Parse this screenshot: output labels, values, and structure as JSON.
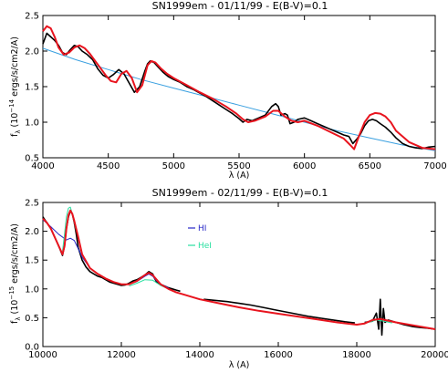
{
  "chart_data": [
    {
      "type": "line",
      "title": "SN1999em - 01/11/99 - E(B-V)=0.1",
      "xlabel": "λ (A)",
      "ylabel_sym": "f",
      "ylabel_sub": "λ",
      "ylabel_main": "(10",
      "ylabel_exp": "−14",
      "ylabel_units": "ergs/s/cm2/A)",
      "xlim": [
        4000,
        7000
      ],
      "ylim": [
        0.5,
        2.5
      ],
      "xticks": [
        "4000",
        "4500",
        "5000",
        "5500",
        "6000",
        "6500",
        "7000"
      ],
      "yticks": [
        "0.5",
        "1.0",
        "1.5",
        "2.0",
        "2.5"
      ],
      "grid": false,
      "series": [
        {
          "color": "#000000",
          "kind": "observed",
          "x": [
            4000,
            4030,
            4060,
            4090,
            4120,
            4150,
            4180,
            4210,
            4240,
            4270,
            4300,
            4340,
            4380,
            4420,
            4460,
            4500,
            4540,
            4580,
            4620,
            4660,
            4700,
            4740,
            4780,
            4800,
            4820,
            4850,
            4880,
            4920,
            4960,
            5000,
            5050,
            5100,
            5150,
            5200,
            5250,
            5300,
            5350,
            5400,
            5450,
            5500,
            5530,
            5560,
            5600,
            5650,
            5700,
            5750,
            5780,
            5800,
            5820,
            5850,
            5870,
            5890,
            5920,
            5950,
            6000,
            6050,
            6100,
            6150,
            6200,
            6250,
            6300,
            6340,
            6370,
            6400,
            6430,
            6460,
            6490,
            6520,
            6550,
            6580,
            6620,
            6660,
            6700,
            6750,
            6800,
            6850,
            6900,
            6950,
            7000
          ],
          "y": [
            2.1,
            2.25,
            2.2,
            2.15,
            2.08,
            1.98,
            1.95,
            2.02,
            2.08,
            2.06,
            2.0,
            1.95,
            1.88,
            1.75,
            1.66,
            1.62,
            1.67,
            1.74,
            1.68,
            1.55,
            1.42,
            1.5,
            1.72,
            1.82,
            1.86,
            1.84,
            1.78,
            1.7,
            1.64,
            1.6,
            1.56,
            1.5,
            1.46,
            1.41,
            1.36,
            1.3,
            1.24,
            1.18,
            1.12,
            1.05,
            1.0,
            1.04,
            1.02,
            1.06,
            1.1,
            1.22,
            1.26,
            1.22,
            1.1,
            1.12,
            1.1,
            0.98,
            1.0,
            1.04,
            1.06,
            1.02,
            0.98,
            0.94,
            0.9,
            0.86,
            0.82,
            0.8,
            0.7,
            0.76,
            0.84,
            0.95,
            1.02,
            1.04,
            1.02,
            0.98,
            0.93,
            0.86,
            0.78,
            0.7,
            0.66,
            0.64,
            0.63,
            0.65,
            0.66
          ]
        },
        {
          "color": "#e8141e",
          "kind": "model",
          "x": [
            4000,
            4030,
            4060,
            4090,
            4120,
            4160,
            4200,
            4240,
            4280,
            4320,
            4360,
            4400,
            4440,
            4480,
            4520,
            4560,
            4600,
            4640,
            4680,
            4720,
            4760,
            4800,
            4830,
            4860,
            4900,
            4950,
            5000,
            5100,
            5200,
            5300,
            5400,
            5480,
            5530,
            5570,
            5620,
            5700,
            5760,
            5800,
            5850,
            5900,
            5950,
            6000,
            6100,
            6200,
            6300,
            6350,
            6380,
            6420,
            6460,
            6500,
            6540,
            6580,
            6620,
            6660,
            6700,
            6800,
            6900,
            7000
          ],
          "y": [
            2.28,
            2.35,
            2.32,
            2.2,
            2.05,
            1.95,
            1.98,
            2.05,
            2.08,
            2.04,
            1.96,
            1.86,
            1.76,
            1.66,
            1.58,
            1.56,
            1.68,
            1.72,
            1.62,
            1.42,
            1.52,
            1.8,
            1.86,
            1.84,
            1.76,
            1.68,
            1.62,
            1.52,
            1.42,
            1.33,
            1.22,
            1.12,
            1.04,
            1.0,
            1.02,
            1.08,
            1.16,
            1.16,
            1.08,
            1.02,
            1.0,
            1.02,
            0.95,
            0.86,
            0.77,
            0.68,
            0.62,
            0.82,
            1.0,
            1.1,
            1.13,
            1.12,
            1.08,
            1.0,
            0.88,
            0.72,
            0.64,
            0.62
          ]
        },
        {
          "color": "#3aa0e0",
          "kind": "continuum",
          "x": [
            4000,
            4250,
            4500,
            4750,
            5000,
            5250,
            5500,
            5750,
            6000,
            6250,
            6500,
            6750,
            7000
          ],
          "y": [
            2.04,
            1.88,
            1.74,
            1.6,
            1.48,
            1.36,
            1.24,
            1.12,
            1.0,
            0.88,
            0.78,
            0.68,
            0.6
          ]
        }
      ]
    },
    {
      "type": "line",
      "title": "SN1999em - 02/11/99 - E(B-V)=0.1",
      "xlabel": "λ (A)",
      "ylabel_sym": "f",
      "ylabel_sub": "λ",
      "ylabel_main": "(10",
      "ylabel_exp": "−15",
      "ylabel_units": "ergs/s/cm2/A)",
      "xlim": [
        10000,
        20000
      ],
      "ylim": [
        0.0,
        2.5
      ],
      "xticks": [
        "10000",
        "12000",
        "14000",
        "16000",
        "18000",
        "20000"
      ],
      "yticks": [
        "0.0",
        "0.5",
        "1.0",
        "1.5",
        "2.0",
        "2.5"
      ],
      "grid": false,
      "legend": [
        {
          "label": "HI",
          "color": "#2828c8"
        },
        {
          "label": "HeI",
          "color": "#28e0a0"
        }
      ],
      "series": [
        {
          "color": "#000000",
          "kind": "observed-segment-1",
          "x": [
            10000,
            10100,
            10200,
            10300,
            10400,
            10500,
            10550,
            10600,
            10650,
            10700,
            10750,
            10800,
            10850,
            10900,
            11000,
            11100,
            11200,
            11300,
            11400,
            11500,
            11600,
            11700,
            11800,
            11900,
            12000,
            12100,
            12200,
            12300,
            12400,
            12500,
            12600,
            12700,
            12800,
            12850,
            12900,
            13000,
            13100,
            13200,
            13300,
            13400,
            13500
          ],
          "y": [
            2.25,
            2.15,
            2.05,
            1.9,
            1.75,
            1.58,
            1.75,
            2.05,
            2.25,
            2.35,
            2.3,
            2.15,
            1.95,
            1.72,
            1.5,
            1.38,
            1.3,
            1.26,
            1.22,
            1.2,
            1.16,
            1.12,
            1.1,
            1.08,
            1.06,
            1.07,
            1.1,
            1.14,
            1.16,
            1.2,
            1.24,
            1.3,
            1.26,
            1.18,
            1.12,
            1.08,
            1.05,
            1.02,
            1.0,
            0.98,
            0.96
          ]
        },
        {
          "color": "#000000",
          "kind": "observed-segment-2",
          "x": [
            14100,
            14400,
            14700,
            15000,
            15300,
            15600,
            15900,
            16200,
            16500,
            16800,
            17100,
            17400,
            17700,
            17950
          ],
          "y": [
            0.82,
            0.8,
            0.78,
            0.75,
            0.72,
            0.68,
            0.64,
            0.6,
            0.56,
            0.52,
            0.49,
            0.46,
            0.43,
            0.41
          ]
        },
        {
          "color": "#000000",
          "kind": "observed-segment-3",
          "x": [
            18200,
            18400,
            18500,
            18560,
            18600,
            18640,
            18680,
            18720,
            18800,
            18900,
            19000,
            19200,
            19400,
            19600,
            19800,
            20000
          ],
          "y": [
            0.42,
            0.44,
            0.58,
            0.3,
            0.82,
            0.2,
            0.66,
            0.42,
            0.46,
            0.44,
            0.42,
            0.38,
            0.35,
            0.33,
            0.32,
            0.3
          ]
        },
        {
          "color": "#e8141e",
          "kind": "model",
          "x": [
            10000,
            10100,
            10200,
            10300,
            10400,
            10500,
            10550,
            10600,
            10650,
            10700,
            10750,
            10800,
            10900,
            11000,
            11200,
            11400,
            11600,
            11800,
            12000,
            12200,
            12400,
            12600,
            12700,
            12800,
            12900,
            13000,
            13200,
            13400,
            13600,
            14000,
            14500,
            15000,
            15500,
            16000,
            16500,
            17000,
            17500,
            18000,
            18200,
            18400,
            18600,
            18800,
            19000,
            19500,
            20000
          ],
          "y": [
            2.22,
            2.15,
            2.05,
            1.9,
            1.75,
            1.6,
            1.74,
            2.05,
            2.28,
            2.36,
            2.3,
            2.18,
            1.9,
            1.6,
            1.36,
            1.26,
            1.18,
            1.12,
            1.08,
            1.08,
            1.14,
            1.24,
            1.28,
            1.24,
            1.16,
            1.08,
            1.0,
            0.94,
            0.9,
            0.82,
            0.75,
            0.68,
            0.62,
            0.57,
            0.52,
            0.47,
            0.42,
            0.38,
            0.4,
            0.46,
            0.48,
            0.45,
            0.42,
            0.36,
            0.3
          ]
        },
        {
          "color": "#2828c8",
          "kind": "HI",
          "x": [
            10000,
            10200,
            10400,
            10600,
            10700,
            10800,
            10900,
            11000,
            11200,
            11400,
            11600,
            11800,
            12000,
            12200,
            12400,
            12600,
            12700,
            12800,
            12900,
            13000,
            13200
          ],
          "y": [
            2.2,
            2.08,
            1.95,
            1.85,
            1.88,
            1.84,
            1.7,
            1.55,
            1.36,
            1.26,
            1.18,
            1.12,
            1.08,
            1.08,
            1.13,
            1.22,
            1.26,
            1.22,
            1.14,
            1.08,
            1.02
          ]
        },
        {
          "color": "#28e0a0",
          "kind": "HeI",
          "x": [
            10500,
            10550,
            10600,
            10650,
            10700,
            10750,
            10800,
            10850
          ],
          "y": [
            1.65,
            1.95,
            2.25,
            2.4,
            2.42,
            2.3,
            2.15,
            2.0
          ]
        },
        {
          "color": "#28e0a0",
          "kind": "HeI-tail",
          "x": [
            12200,
            12400,
            12600,
            12800,
            13000,
            13200
          ],
          "y": [
            1.05,
            1.1,
            1.16,
            1.15,
            1.06,
            1.0
          ]
        },
        {
          "color": "#28e0a0",
          "kind": "HeI-tail-2",
          "x": [
            18300,
            18500,
            18700,
            18900
          ],
          "y": [
            0.42,
            0.46,
            0.44,
            0.41
          ]
        }
      ]
    }
  ]
}
